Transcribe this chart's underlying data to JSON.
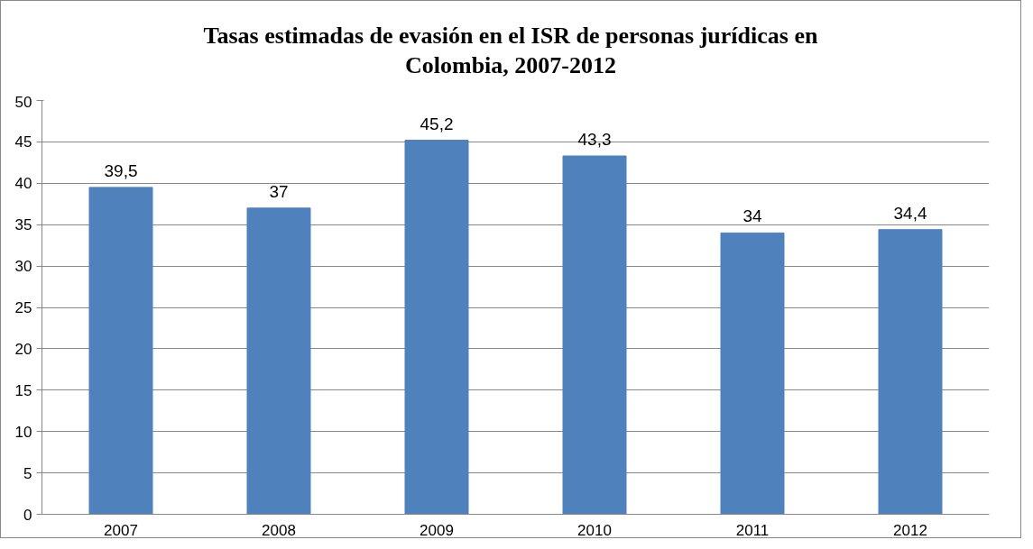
{
  "chart_data": {
    "type": "bar",
    "title": "Tasas estimadas de evasión en el ISR de personas jurídicas en Colombia, 2007-2012",
    "categories": [
      "2007",
      "2008",
      "2009",
      "2010",
      "2011",
      "2012"
    ],
    "values": [
      39.5,
      37,
      45.2,
      43.3,
      34,
      34.4
    ],
    "value_labels": [
      "39,5",
      "37",
      "45,2",
      "43,3",
      "34",
      "34,4"
    ],
    "color": "#4f81bd",
    "ylim": [
      0,
      50
    ],
    "yticks": [
      0,
      5,
      10,
      15,
      20,
      25,
      30,
      35,
      40,
      45,
      50
    ],
    "grid": "y"
  }
}
